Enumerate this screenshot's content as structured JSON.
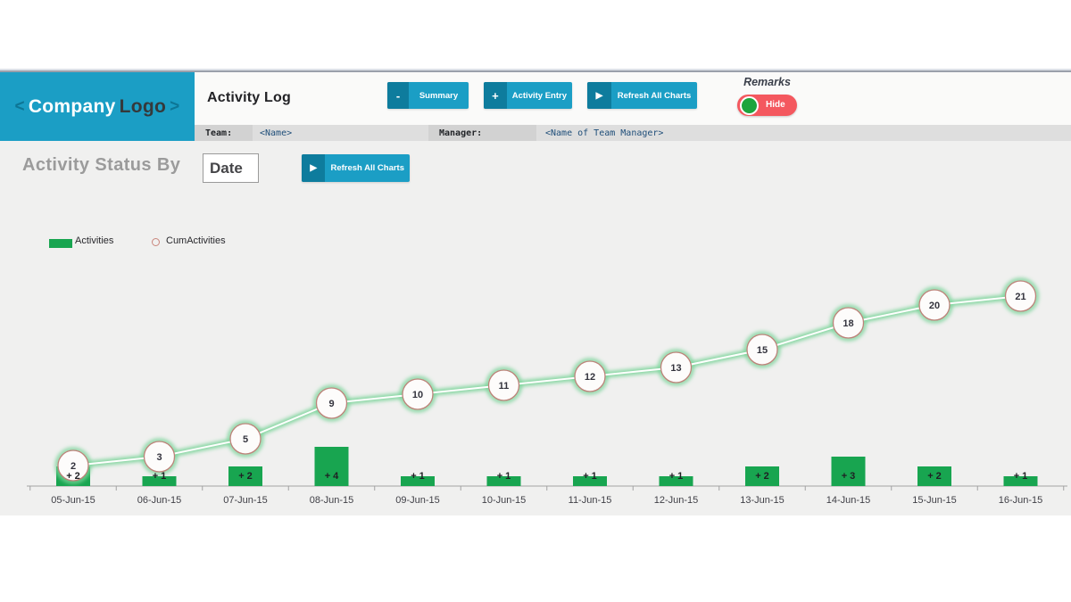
{
  "header": {
    "logo": {
      "left_bracket": "<",
      "name": "Company",
      "suffix": "Logo",
      "right_bracket": ">"
    },
    "title": "Activity Log",
    "buttons": [
      {
        "icon": "-",
        "label": "Summary"
      },
      {
        "icon": "+",
        "label": "Activity Entry"
      },
      {
        "icon": "▶",
        "label": "Refresh All Charts"
      }
    ],
    "remarks": {
      "label": "Remarks",
      "toggle_label": "Hide",
      "toggle_color": "#f4585f",
      "knob_color": "#1da43d"
    },
    "team_label": "Team:",
    "team_value": "<Name>",
    "manager_label": "Manager:",
    "manager_value": "<Name of Team Manager>"
  },
  "controls": {
    "status_by_label": "Activity Status By",
    "date_selector_value": "Date",
    "refresh_button": {
      "icon": "▶",
      "label": "Refresh All Charts"
    }
  },
  "colors": {
    "brand_teal": "#1b9ec5",
    "brand_teal_dark": "#0e7c9d",
    "bar_green": "#18a550",
    "line_glow_green": "#7bd49a",
    "marker_stroke": "#bd8279",
    "toggle_red": "#f4585f"
  },
  "chart_data": {
    "type": "bar",
    "subtype": "bar+line combo (cumulative)",
    "title": "",
    "xlabel": "",
    "ylabel": "",
    "grid": false,
    "y_axis_visible": false,
    "legend_position": "top-left",
    "categories": [
      "05-Jun-15",
      "06-Jun-15",
      "07-Jun-15",
      "08-Jun-15",
      "09-Jun-15",
      "10-Jun-15",
      "11-Jun-15",
      "12-Jun-15",
      "13-Jun-15",
      "14-Jun-15",
      "15-Jun-15",
      "16-Jun-15"
    ],
    "series": [
      {
        "name": "Activities",
        "type": "bar",
        "color": "#18a550",
        "values": [
          2,
          1,
          2,
          4,
          1,
          1,
          1,
          1,
          2,
          3,
          2,
          1
        ],
        "data_labels": [
          "+ 2",
          "+ 1",
          "+ 2",
          "+ 4",
          "+ 1",
          "+ 1",
          "+ 1",
          "+ 1",
          "+ 2",
          "+ 3",
          "+ 2",
          "+ 1"
        ]
      },
      {
        "name": "CumActivities",
        "type": "line",
        "line_color": "#7bd49a",
        "line_core_color": "#ffffff",
        "marker_fill": "#fdfcfb",
        "marker_stroke": "#bd8279",
        "values": [
          2,
          3,
          5,
          9,
          10,
          11,
          12,
          13,
          15,
          18,
          20,
          21
        ]
      }
    ]
  }
}
